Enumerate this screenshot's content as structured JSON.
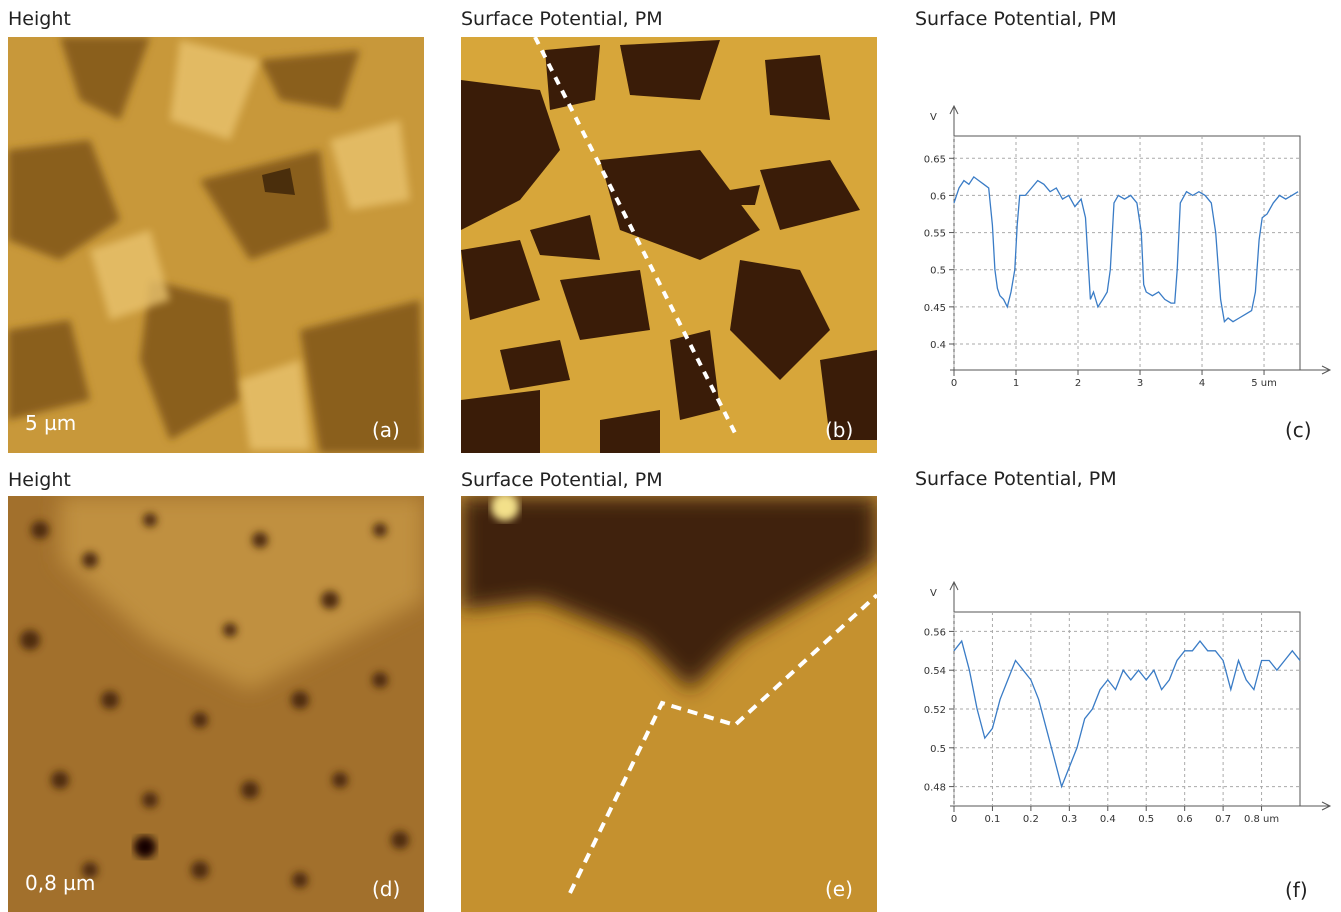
{
  "panels": [
    {
      "title": "Height",
      "scale": "5 µm",
      "label": "(a)"
    },
    {
      "title": "Surface Potential, PM",
      "label": "(b)"
    },
    {
      "title": "Height",
      "scale": "0,8 µm",
      "label": "(d)"
    },
    {
      "title": "Surface Potential, PM",
      "label": "(e)"
    }
  ],
  "chart_data": [
    {
      "type": "line",
      "title": "Surface Potential, PM",
      "label": "(c)",
      "ylabel": "V",
      "grid": true,
      "xlim": [
        0,
        5.58
      ],
      "ylim": [
        0.365,
        0.68
      ],
      "xticks": [
        0,
        1,
        2,
        3,
        4,
        {
          "value": 5,
          "label": "5 um"
        }
      ],
      "yticks": [
        0.4,
        0.45,
        0.5,
        0.55,
        0.6,
        0.65
      ],
      "series": [
        {
          "color": "#3a7cc6",
          "x": [
            0,
            0.08,
            0.16,
            0.24,
            0.32,
            0.4,
            0.48,
            0.56,
            0.62,
            0.66,
            0.7,
            0.74,
            0.8,
            0.86,
            0.92,
            0.98,
            1.02,
            1.06,
            1.15,
            1.25,
            1.35,
            1.45,
            1.55,
            1.65,
            1.75,
            1.85,
            1.95,
            2.05,
            2.12,
            2.17,
            2.2,
            2.25,
            2.32,
            2.4,
            2.47,
            2.52,
            2.58,
            2.65,
            2.75,
            2.85,
            2.95,
            3.02,
            3.06,
            3.1,
            3.2,
            3.3,
            3.4,
            3.5,
            3.56,
            3.6,
            3.65,
            3.75,
            3.85,
            3.95,
            4.05,
            4.15,
            4.22,
            4.3,
            4.36,
            4.42,
            4.5,
            4.6,
            4.7,
            4.8,
            4.86,
            4.92,
            4.97,
            5.05,
            5.15,
            5.25,
            5.35,
            5.45,
            5.55
          ],
          "values": [
            0.59,
            0.61,
            0.62,
            0.615,
            0.625,
            0.62,
            0.615,
            0.61,
            0.56,
            0.5,
            0.475,
            0.465,
            0.46,
            0.45,
            0.47,
            0.5,
            0.56,
            0.6,
            0.6,
            0.61,
            0.62,
            0.615,
            0.605,
            0.61,
            0.595,
            0.6,
            0.585,
            0.595,
            0.57,
            0.5,
            0.46,
            0.47,
            0.45,
            0.46,
            0.47,
            0.5,
            0.59,
            0.6,
            0.595,
            0.6,
            0.59,
            0.55,
            0.48,
            0.47,
            0.465,
            0.47,
            0.46,
            0.455,
            0.455,
            0.5,
            0.59,
            0.605,
            0.6,
            0.605,
            0.6,
            0.59,
            0.55,
            0.46,
            0.43,
            0.435,
            0.43,
            0.435,
            0.44,
            0.445,
            0.47,
            0.54,
            0.57,
            0.575,
            0.59,
            0.6,
            0.595,
            0.6,
            0.605
          ]
        }
      ]
    },
    {
      "type": "line",
      "title": "Surface Potential, PM",
      "label": "(f)",
      "ylabel": "V",
      "grid": true,
      "xlim": [
        0,
        0.9
      ],
      "ylim": [
        0.47,
        0.57
      ],
      "xticks": [
        0,
        0.1,
        0.2,
        0.3,
        0.4,
        0.5,
        0.6,
        0.7,
        {
          "value": 0.8,
          "label": "0.8 um"
        }
      ],
      "yticks": [
        0.48,
        0.5,
        0.52,
        0.54,
        0.56
      ],
      "series": [
        {
          "color": "#3a7cc6",
          "x": [
            0,
            0.02,
            0.04,
            0.06,
            0.08,
            0.1,
            0.12,
            0.14,
            0.16,
            0.18,
            0.2,
            0.22,
            0.24,
            0.26,
            0.28,
            0.3,
            0.32,
            0.34,
            0.36,
            0.38,
            0.4,
            0.42,
            0.44,
            0.46,
            0.48,
            0.5,
            0.52,
            0.54,
            0.56,
            0.58,
            0.6,
            0.62,
            0.64,
            0.66,
            0.68,
            0.7,
            0.72,
            0.74,
            0.76,
            0.78,
            0.8,
            0.82,
            0.84,
            0.86,
            0.88,
            0.9
          ],
          "values": [
            0.55,
            0.555,
            0.54,
            0.52,
            0.505,
            0.51,
            0.525,
            0.535,
            0.545,
            0.54,
            0.535,
            0.525,
            0.51,
            0.495,
            0.48,
            0.49,
            0.5,
            0.515,
            0.52,
            0.53,
            0.535,
            0.53,
            0.54,
            0.535,
            0.54,
            0.535,
            0.54,
            0.53,
            0.535,
            0.545,
            0.55,
            0.55,
            0.555,
            0.55,
            0.55,
            0.545,
            0.53,
            0.545,
            0.535,
            0.53,
            0.545,
            0.545,
            0.54,
            0.545,
            0.55,
            0.545
          ]
        }
      ]
    }
  ]
}
